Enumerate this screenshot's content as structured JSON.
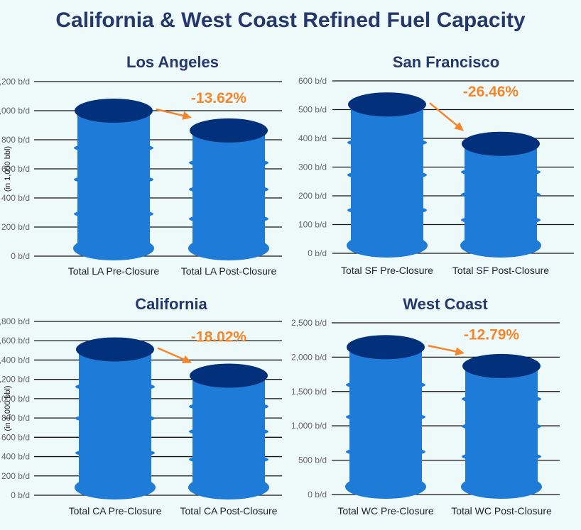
{
  "title": "California & West Coast Refined Fuel Capacity",
  "colors": {
    "barrel": "#1f7bd8",
    "barrel_top": "#03307a",
    "arrow": "#f5862a",
    "title": "#25376b"
  },
  "chart_data": [
    {
      "type": "bar",
      "title": "Los Angeles",
      "ylabel": "(in 1,000 bbl)",
      "ylim": [
        0,
        1200
      ],
      "ticks": [
        "0 b/d",
        "200 b/d",
        "400 b/d",
        "600 b/d",
        "800 b/d",
        "1,000 b/d",
        "1,200 b/d"
      ],
      "categories": [
        "Total LA Pre-Closure",
        "Total LA Post-Closure"
      ],
      "values": [
        1000,
        864
      ],
      "change_label": "-13.62%",
      "grid": true
    },
    {
      "type": "bar",
      "title": "San Francisco",
      "ylabel": "",
      "ylim": [
        0,
        600
      ],
      "ticks": [
        "0 b/d",
        "100 b/d",
        "200 b/d",
        "300 b/d",
        "400 b/d",
        "500 b/d",
        "600 b/d"
      ],
      "categories": [
        "Total SF Pre-Closure",
        "Total SF Post-Closure"
      ],
      "values": [
        518,
        381
      ],
      "change_label": "-26.46%",
      "grid": true
    },
    {
      "type": "bar",
      "title": "California",
      "ylabel": "(in 1,000 bbl)",
      "ylim": [
        0,
        1800
      ],
      "ticks": [
        "0 b/d",
        "200 b/d",
        "400 b/d",
        "600 b/d",
        "800 b/d",
        "1,000 b/d",
        "1,200 b/d",
        "1,400 b/d",
        "1,600 b/d",
        "1,800 b/d"
      ],
      "categories": [
        "Total CA Pre-Closure",
        "Total CA Post-Closure"
      ],
      "values": [
        1510,
        1238
      ],
      "change_label": "-18.02%",
      "grid": true
    },
    {
      "type": "bar",
      "title": "West Coast",
      "ylabel": "",
      "ylim": [
        0,
        2500
      ],
      "ticks": [
        "0 b/d",
        "500 b/d",
        "1,000 b/d",
        "1,500 b/d",
        "2,000 b/d",
        "2,500 b/d"
      ],
      "categories": [
        "Total WC Pre-Closure",
        "Total WC Post-Closure"
      ],
      "values": [
        2146,
        1871
      ],
      "change_label": "-12.79%",
      "grid": true
    }
  ]
}
